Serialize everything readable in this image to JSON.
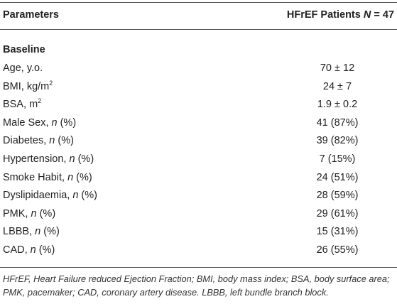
{
  "header": {
    "parameters": "Parameters",
    "group_prefix": "HFrEF Patients ",
    "n_symbol": "N",
    "n_value": " = 47"
  },
  "section": {
    "baseline": "Baseline"
  },
  "rows": [
    {
      "label": "Age, y.o.",
      "value": "70 ± 12"
    },
    {
      "label": "BMI, kg/m",
      "label_sup": "2",
      "value": "24 ± 7"
    },
    {
      "label": "BSA, m",
      "label_sup": "2",
      "value": "1.9 ± 0.2"
    },
    {
      "label": "Male Sex, ",
      "label_italic": "n",
      "label_suffix": " (%)",
      "value": "41 (87%)"
    },
    {
      "label": "Diabetes, ",
      "label_italic": "n",
      "label_suffix": " (%)",
      "value": "39 (82%)"
    },
    {
      "label": "Hypertension, ",
      "label_italic": "n",
      "label_suffix": " (%)",
      "value": "7 (15%)"
    },
    {
      "label": "Smoke Habit, ",
      "label_italic": "n",
      "label_suffix": " (%)",
      "value": "24 (51%)"
    },
    {
      "label": "Dyslipidaemia, ",
      "label_italic": "n",
      "label_suffix": " (%)",
      "value": "28 (59%)"
    },
    {
      "label": "PMK, ",
      "label_italic": "n",
      "label_suffix": " (%)",
      "value": "29 (61%)"
    },
    {
      "label": "LBBB, ",
      "label_italic": "n",
      "label_suffix": " (%)",
      "value": "15 (31%)"
    },
    {
      "label": "CAD, ",
      "label_italic": "n",
      "label_suffix": " (%)",
      "value": "26 (55%)"
    }
  ],
  "footnote": "HFrEF, Heart Failure reduced Ejection Fraction; BMI, body mass index; BSA, body surface area; PMK, pacemaker; CAD, coronary artery disease. LBBB, left bundle branch block."
}
